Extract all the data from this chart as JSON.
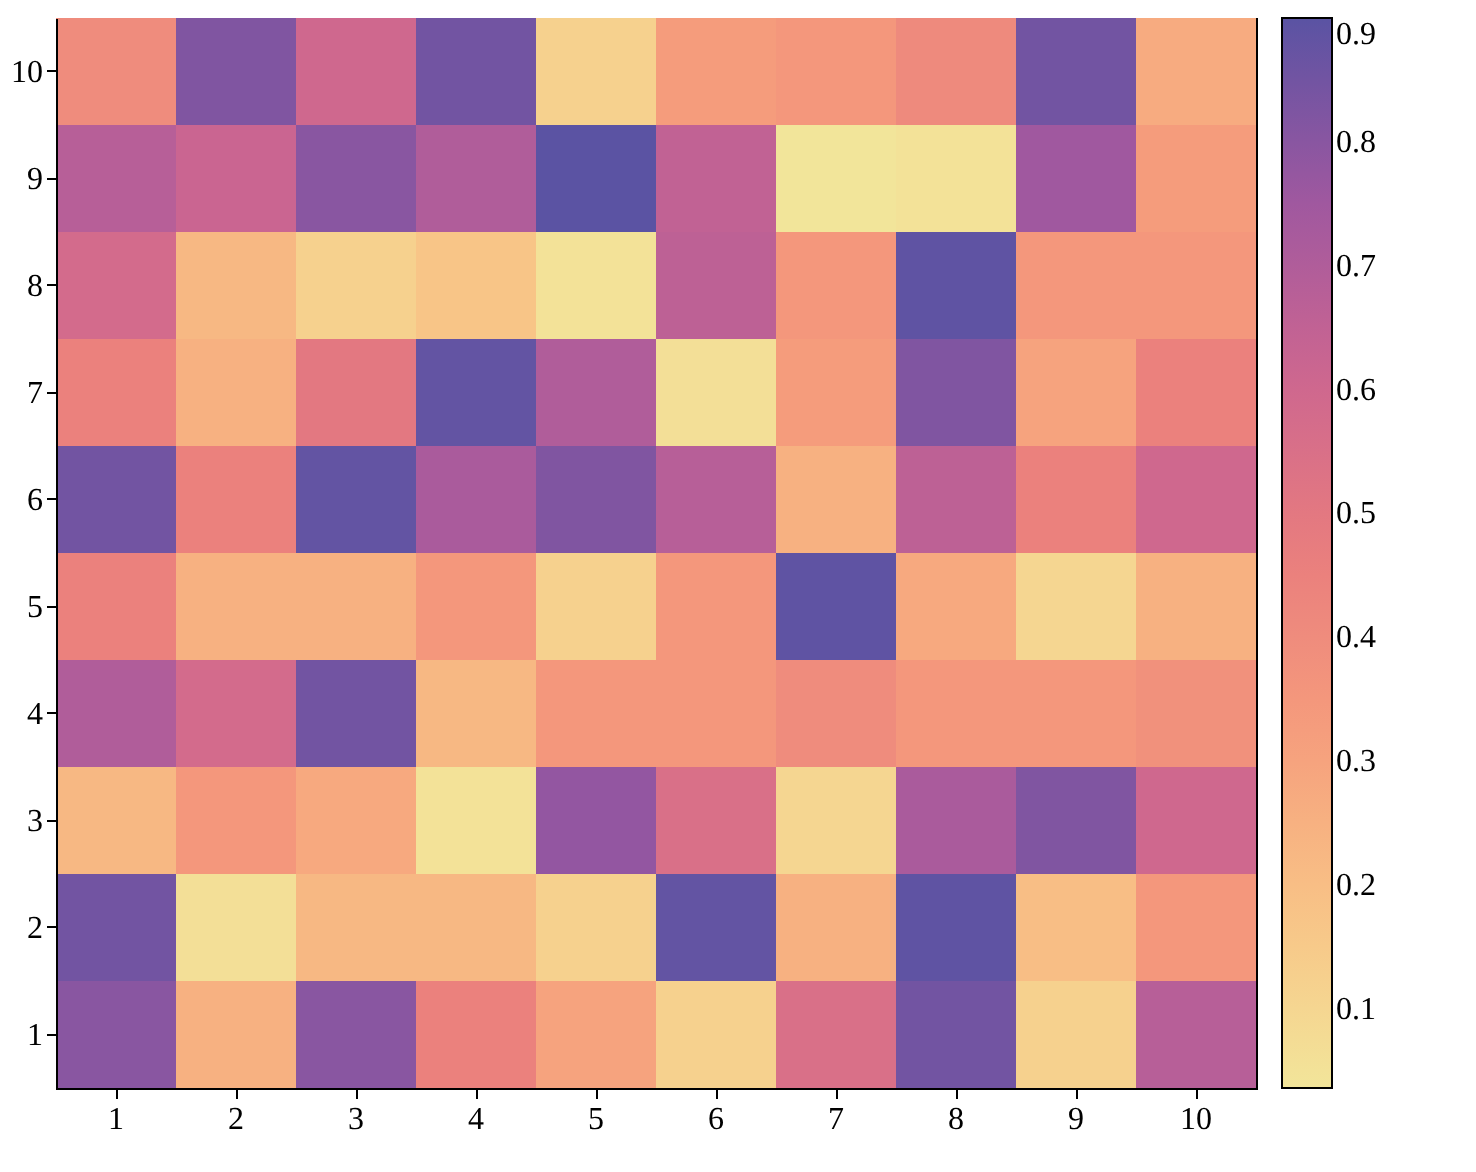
{
  "chart_data": {
    "type": "heatmap",
    "categories": [
      "1",
      "2",
      "3",
      "4",
      "5",
      "6",
      "7",
      "8",
      "9",
      "10"
    ],
    "y_categories": [
      "10",
      "9",
      "8",
      "7",
      "6",
      "5",
      "4",
      "3",
      "2",
      "1"
    ],
    "cells": [
      [
        0.4,
        0.82,
        0.6,
        0.85,
        0.12,
        0.33,
        0.35,
        0.41,
        0.85,
        0.27
      ],
      [
        0.68,
        0.62,
        0.8,
        0.7,
        0.898,
        0.65,
        0.036,
        0.05,
        0.75,
        0.33
      ],
      [
        0.58,
        0.22,
        0.12,
        0.17,
        0.05,
        0.66,
        0.35,
        0.89,
        0.35,
        0.35
      ],
      [
        0.45,
        0.25,
        0.5,
        0.88,
        0.7,
        0.06,
        0.33,
        0.82,
        0.3,
        0.45
      ],
      [
        0.85,
        0.45,
        0.88,
        0.72,
        0.82,
        0.68,
        0.25,
        0.66,
        0.45,
        0.6
      ],
      [
        0.45,
        0.25,
        0.25,
        0.35,
        0.12,
        0.35,
        0.89,
        0.28,
        0.1,
        0.25
      ],
      [
        0.7,
        0.58,
        0.85,
        0.22,
        0.35,
        0.35,
        0.4,
        0.35,
        0.35,
        0.38
      ],
      [
        0.22,
        0.35,
        0.28,
        0.05,
        0.78,
        0.55,
        0.1,
        0.72,
        0.82,
        0.6
      ],
      [
        0.85,
        0.06,
        0.22,
        0.22,
        0.12,
        0.88,
        0.25,
        0.89,
        0.2,
        0.35
      ],
      [
        0.8,
        0.25,
        0.8,
        0.45,
        0.3,
        0.12,
        0.55,
        0.85,
        0.12,
        0.68
      ]
    ],
    "clim": [
      0.036,
      0.9
    ],
    "cticks": [
      0.1,
      0.2,
      0.3,
      0.4,
      0.5,
      0.6,
      0.7,
      0.8,
      0.9
    ],
    "colors": [
      "#f2e59a",
      "#f8c386",
      "#f69d7c",
      "#e97d7d",
      "#cd6690",
      "#9e57a0",
      "#5a53a3"
    ]
  }
}
